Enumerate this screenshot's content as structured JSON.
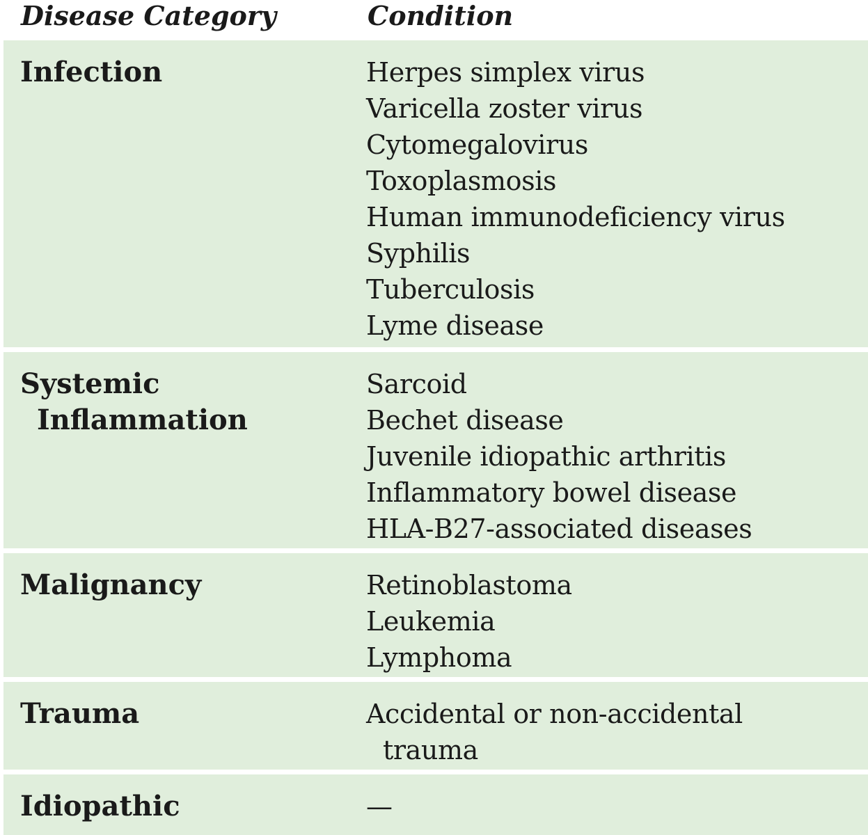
{
  "header": {
    "category": "Disease Category",
    "condition": "Condition"
  },
  "rows": [
    {
      "category": "Infection",
      "conditions": [
        "Herpes simplex virus",
        "Varicella zoster virus",
        "Cytomegalovirus",
        "Toxoplasmosis",
        "Human immunodeficiency virus",
        "Syphilis",
        "Tuberculosis",
        "Lyme disease"
      ]
    },
    {
      "category_line1": "Systemic",
      "category_line2": "Inflammation",
      "conditions": [
        "Sarcoid",
        "Bechet disease",
        "Juvenile idiopathic arthritis",
        "Inflammatory bowel disease",
        "HLA-B27-associated diseases"
      ]
    },
    {
      "category": "Malignancy",
      "conditions": [
        "Retinoblastoma",
        "Leukemia",
        "Lymphoma"
      ]
    },
    {
      "category": "Trauma",
      "condition_line1": "Accidental or non-accidental",
      "condition_line2": "trauma"
    },
    {
      "category": "Idiopathic",
      "conditions": [
        "—"
      ]
    }
  ],
  "colors": {
    "row_background": "#e0eedc",
    "separator": "#ffffff",
    "text": "#1a1a1a"
  }
}
